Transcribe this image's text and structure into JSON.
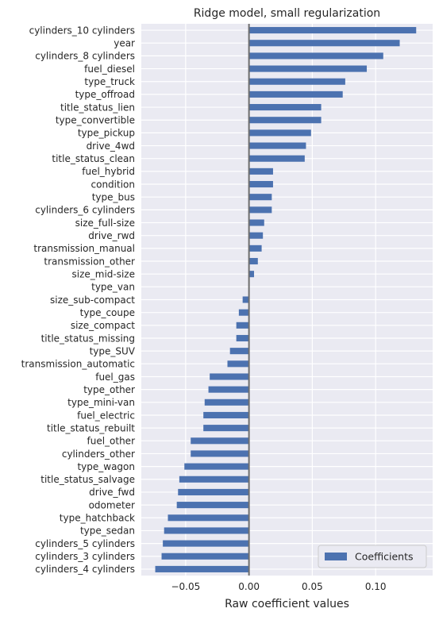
{
  "chart_data": {
    "type": "bar",
    "orientation": "horizontal",
    "title": "Ridge model, small regularization",
    "xlabel": "Raw coefficient values",
    "ylabel": "",
    "xlim": [
      -0.085,
      0.145
    ],
    "xticks": [
      -0.05,
      0.0,
      0.05,
      0.1
    ],
    "xtick_labels": [
      "−0.05",
      "0.00",
      "0.05",
      "0.10"
    ],
    "grid": true,
    "legend_position": "bottom-right",
    "bar_color": "#4c72b0",
    "zero_line_color": "#6e6e6e",
    "categories": [
      "cylinders_10 cylinders",
      "year",
      "cylinders_8 cylinders",
      "fuel_diesel",
      "type_truck",
      "type_offroad",
      "title_status_lien",
      "type_convertible",
      "type_pickup",
      "drive_4wd",
      "title_status_clean",
      "fuel_hybrid",
      "condition",
      "type_bus",
      "cylinders_6 cylinders",
      "size_full-size",
      "drive_rwd",
      "transmission_manual",
      "transmission_other",
      "size_mid-size",
      "type_van",
      "size_sub-compact",
      "type_coupe",
      "size_compact",
      "title_status_missing",
      "type_SUV",
      "transmission_automatic",
      "fuel_gas",
      "type_other",
      "type_mini-van",
      "fuel_electric",
      "title_status_rebuilt",
      "fuel_other",
      "cylinders_other",
      "type_wagon",
      "title_status_salvage",
      "drive_fwd",
      "odometer",
      "type_hatchback",
      "type_sedan",
      "cylinders_5 cylinders",
      "cylinders_3 cylinders",
      "cylinders_4 cylinders"
    ],
    "series": [
      {
        "name": "Coefficients",
        "values": [
          0.132,
          0.119,
          0.106,
          0.093,
          0.076,
          0.074,
          0.057,
          0.057,
          0.049,
          0.045,
          0.044,
          0.019,
          0.019,
          0.018,
          0.018,
          0.012,
          0.011,
          0.01,
          0.007,
          0.004,
          0.0,
          -0.005,
          -0.008,
          -0.01,
          -0.01,
          -0.015,
          -0.017,
          -0.031,
          -0.032,
          -0.035,
          -0.036,
          -0.036,
          -0.046,
          -0.046,
          -0.051,
          -0.055,
          -0.056,
          -0.057,
          -0.064,
          -0.067,
          -0.068,
          -0.069,
          -0.074
        ]
      }
    ]
  }
}
